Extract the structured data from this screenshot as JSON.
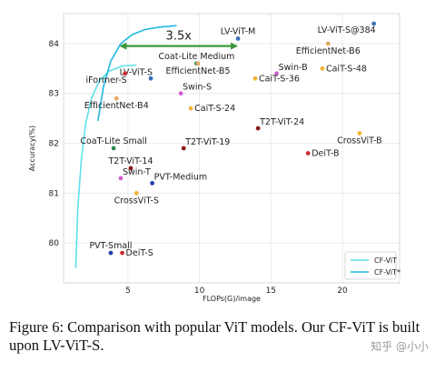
{
  "chart_data": {
    "type": "scatter",
    "title": "",
    "xlabel": "FLOPs(G)/image",
    "ylabel": "Accuracy(%)",
    "xlim": [
      0.5,
      24
    ],
    "ylim": [
      79.2,
      84.6
    ],
    "xticks": [
      5,
      10,
      15,
      20
    ],
    "yticks": [
      80,
      81,
      82,
      83,
      84
    ],
    "grid": true,
    "legend_position": "bottom-right",
    "points": [
      {
        "label": "LV-ViT-M",
        "x": 12.7,
        "y": 84.1,
        "color": "#3b6fb6",
        "label_pos": "above"
      },
      {
        "label": "LV-ViT-S@384",
        "x": 22.2,
        "y": 84.4,
        "color": "#3b6fb6",
        "label_pos": "below-left"
      },
      {
        "label": "EfficientNet-B6",
        "x": 19.0,
        "y": 84.0,
        "color": "#e5a864",
        "label_pos": "below"
      },
      {
        "label": "Coat-Lite Medium",
        "x": 9.8,
        "y": 83.6,
        "color": "#2e8b57",
        "label_pos": "above"
      },
      {
        "label": "EfficientNet-B5",
        "x": 9.9,
        "y": 83.6,
        "color": "#e5a864",
        "label_pos": "below"
      },
      {
        "label": "Swin-B",
        "x": 15.4,
        "y": 83.4,
        "color": "#d45fd4",
        "label_pos": "above-right"
      },
      {
        "label": "CaiT-S-36",
        "x": 13.9,
        "y": 83.3,
        "color": "#f2b437",
        "label_pos": "right"
      },
      {
        "label": "CaiT-S-48",
        "x": 18.6,
        "y": 83.5,
        "color": "#f2b437",
        "label_pos": "right"
      },
      {
        "label": "LV-ViT-S",
        "x": 6.6,
        "y": 83.3,
        "color": "#3b6fb6",
        "label_pos": "above-left"
      },
      {
        "label": "iFormer-S",
        "x": 4.8,
        "y": 83.4,
        "color": "#cc2b2b",
        "label_pos": "below-left"
      },
      {
        "label": "EfficientNet-B4",
        "x": 4.2,
        "y": 82.9,
        "color": "#e5a864",
        "label_pos": "below"
      },
      {
        "label": "Swin-S",
        "x": 8.7,
        "y": 83.0,
        "color": "#d45fd4",
        "label_pos": "above-right"
      },
      {
        "label": "CaiT-S-24",
        "x": 9.4,
        "y": 82.7,
        "color": "#f2b437",
        "label_pos": "right"
      },
      {
        "label": "T2T-ViT-24",
        "x": 14.1,
        "y": 82.3,
        "color": "#8b1a1a",
        "label_pos": "above-right"
      },
      {
        "label": "CrossViT-B",
        "x": 21.2,
        "y": 82.2,
        "color": "#f2b437",
        "label_pos": "below"
      },
      {
        "label": "DeiT-B",
        "x": 17.6,
        "y": 81.8,
        "color": "#cc2b2b",
        "label_pos": "right"
      },
      {
        "label": "CoaT-Lite Small",
        "x": 4.0,
        "y": 81.9,
        "color": "#2e8b57",
        "label_pos": "above"
      },
      {
        "label": "T2T-ViT-19",
        "x": 8.9,
        "y": 81.9,
        "color": "#8b1a1a",
        "label_pos": "above-right"
      },
      {
        "label": "T2T-ViT-14",
        "x": 5.2,
        "y": 81.5,
        "color": "#8b1a1a",
        "label_pos": "above"
      },
      {
        "label": "Swin-T",
        "x": 4.5,
        "y": 81.3,
        "color": "#d45fd4",
        "label_pos": "above-right"
      },
      {
        "label": "PVT-Medium",
        "x": 6.7,
        "y": 81.2,
        "color": "#2040b0",
        "label_pos": "above-right"
      },
      {
        "label": "CrossViT-S",
        "x": 5.6,
        "y": 81.0,
        "color": "#f2b437",
        "label_pos": "below"
      },
      {
        "label": "PVT-Small",
        "x": 3.8,
        "y": 79.8,
        "color": "#2040b0",
        "label_pos": "above"
      },
      {
        "label": "DeiT-S",
        "x": 4.6,
        "y": 79.8,
        "color": "#cc2b2b",
        "label_pos": "right"
      }
    ],
    "series": [
      {
        "name": "CF-ViT",
        "color": "#5ce0ea",
        "x": [
          1.35,
          1.5,
          1.75,
          2.05,
          2.45,
          3.0,
          3.7,
          4.6,
          5.6
        ],
        "y": [
          79.5,
          80.7,
          81.7,
          82.4,
          82.9,
          83.25,
          83.45,
          83.55,
          83.57
        ]
      },
      {
        "name": "CF-ViT*",
        "color": "#1fb8e0",
        "x": [
          2.9,
          3.3,
          3.8,
          4.5,
          5.3,
          6.2,
          7.2,
          8.4
        ],
        "y": [
          82.45,
          83.15,
          83.65,
          84.0,
          84.18,
          84.28,
          84.33,
          84.36
        ]
      }
    ],
    "annotation": {
      "text": "3.5x",
      "x_from": 4.4,
      "x_to": 12.7,
      "y": 83.95,
      "color": "#3a9a3a"
    }
  },
  "caption": {
    "text": "Figure 6:  Comparison with popular ViT models. Our CF-ViT is built upon LV-ViT-S."
  },
  "watermark": {
    "text": "知乎 @小小"
  }
}
